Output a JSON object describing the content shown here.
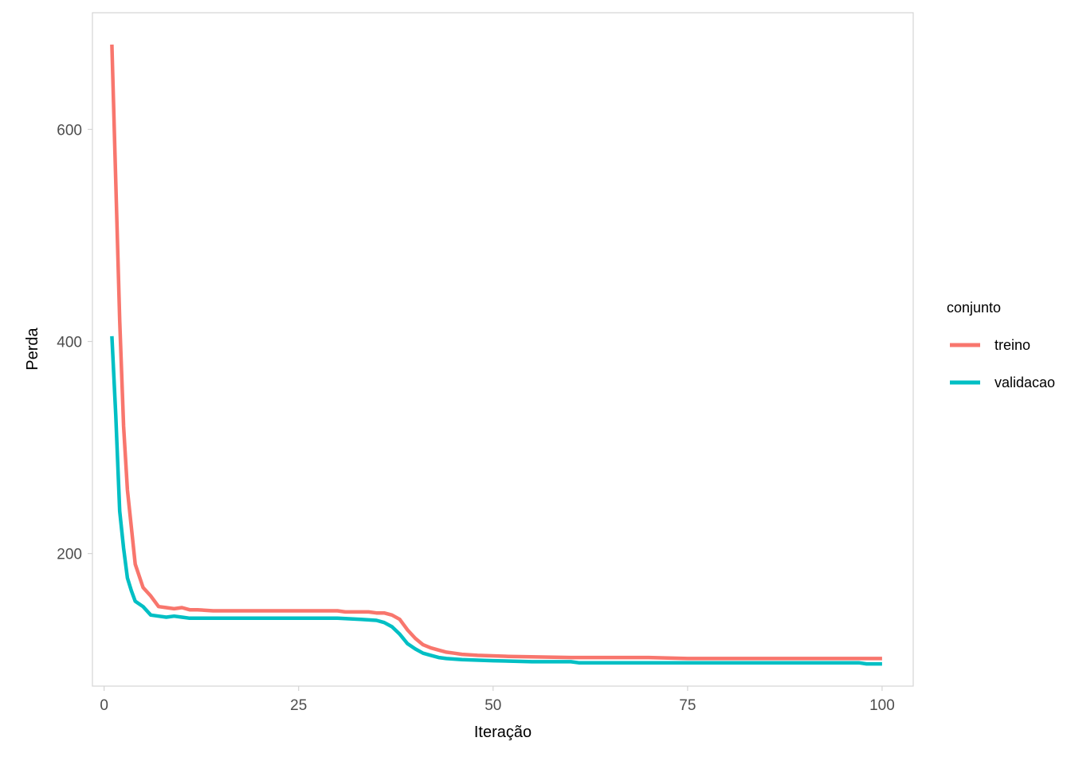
{
  "chart_data": {
    "type": "line",
    "title": "",
    "xlabel": "Iteração",
    "ylabel": "Perda",
    "xlim": [
      -1.5,
      104
    ],
    "ylim": [
      75,
      710
    ],
    "x_ticks": [
      0,
      25,
      50,
      75,
      100
    ],
    "x_tick_labels": [
      "0",
      "25",
      "50",
      "75",
      "100"
    ],
    "y_ticks": [
      200,
      400,
      600
    ],
    "y_tick_labels": [
      "200",
      "400",
      "600"
    ],
    "grid": false,
    "legend": {
      "title": "conjunto",
      "position": "right"
    },
    "series": [
      {
        "name": "treino",
        "color": "#F8766D",
        "points": [
          [
            1,
            680
          ],
          [
            1.5,
            550
          ],
          [
            2,
            420
          ],
          [
            2.5,
            320
          ],
          [
            3,
            260
          ],
          [
            3.5,
            225
          ],
          [
            4,
            190
          ],
          [
            5,
            168
          ],
          [
            6,
            160
          ],
          [
            7,
            150
          ],
          [
            8,
            149
          ],
          [
            9,
            148
          ],
          [
            10,
            149
          ],
          [
            11,
            147
          ],
          [
            12,
            147
          ],
          [
            14,
            146
          ],
          [
            20,
            146
          ],
          [
            25,
            146
          ],
          [
            30,
            146
          ],
          [
            31,
            145
          ],
          [
            34,
            145
          ],
          [
            35,
            144
          ],
          [
            36,
            144
          ],
          [
            37,
            142
          ],
          [
            38,
            138
          ],
          [
            39,
            128
          ],
          [
            40,
            120
          ],
          [
            41,
            114
          ],
          [
            42,
            111
          ],
          [
            43,
            109
          ],
          [
            44,
            107
          ],
          [
            45,
            106
          ],
          [
            46,
            105
          ],
          [
            48,
            104
          ],
          [
            52,
            103
          ],
          [
            60,
            102
          ],
          [
            70,
            102
          ],
          [
            75,
            101
          ],
          [
            80,
            101
          ],
          [
            90,
            101
          ],
          [
            100,
            101
          ]
        ]
      },
      {
        "name": "validacao",
        "color": "#00BFC4",
        "points": [
          [
            1,
            405
          ],
          [
            1.5,
            330
          ],
          [
            2,
            240
          ],
          [
            2.5,
            205
          ],
          [
            3,
            177
          ],
          [
            3.5,
            165
          ],
          [
            4,
            155
          ],
          [
            5,
            150
          ],
          [
            6,
            142
          ],
          [
            7,
            141
          ],
          [
            8,
            140
          ],
          [
            9,
            141
          ],
          [
            10,
            140
          ],
          [
            11,
            139
          ],
          [
            15,
            139
          ],
          [
            20,
            139
          ],
          [
            25,
            139
          ],
          [
            30,
            139
          ],
          [
            33,
            138
          ],
          [
            35,
            137
          ],
          [
            36,
            135
          ],
          [
            37,
            131
          ],
          [
            38,
            124
          ],
          [
            39,
            115
          ],
          [
            40,
            110
          ],
          [
            41,
            106
          ],
          [
            42,
            104
          ],
          [
            43,
            102
          ],
          [
            44,
            101
          ],
          [
            46,
            100
          ],
          [
            50,
            99
          ],
          [
            55,
            98
          ],
          [
            60,
            98
          ],
          [
            61,
            97
          ],
          [
            70,
            97
          ],
          [
            80,
            97
          ],
          [
            90,
            97
          ],
          [
            97,
            97
          ],
          [
            98,
            96
          ],
          [
            100,
            96
          ]
        ]
      }
    ]
  }
}
